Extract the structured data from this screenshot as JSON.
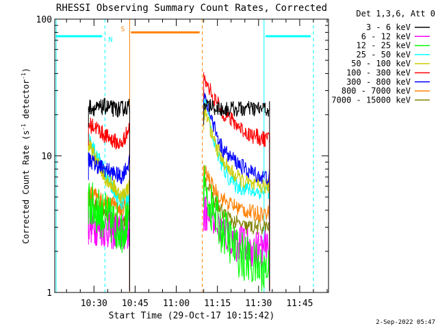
{
  "chart_data": {
    "type": "line",
    "title": "RHESSI Observing Summary Count Rates, Corrected",
    "xlabel": "Start Time (29-Oct-17 10:15:42)",
    "ylabel": "Corrected Count Rate (s⁻¹ detector⁻¹)",
    "ylabel_parts": {
      "main": "Corrected Count Rate (s",
      "exp1": "-1",
      "mid": " detector",
      "exp2": "-1",
      "end": ")"
    },
    "xlim": [
      "10:15:42",
      "11:55:30"
    ],
    "ylim": [
      1,
      100
    ],
    "yscale": "log",
    "x_ticks": [
      "10:30",
      "10:45",
      "11:00",
      "11:15",
      "11:30",
      "11:45"
    ],
    "y_ticks": [
      "1",
      "10",
      "100"
    ],
    "legend": {
      "placement": "top-right",
      "header": "Det 1,3,6, Att 0",
      "entries": [
        {
          "label": "3 - 6 keV",
          "color": "#000000"
        },
        {
          "label": "6 - 12 keV",
          "color": "#ff00ff"
        },
        {
          "label": "12 - 25 keV",
          "color": "#00ff00"
        },
        {
          "label": "25 - 50 keV",
          "color": "#00ffff"
        },
        {
          "label": "50 - 100 keV",
          "color": "#cccc00"
        },
        {
          "label": "100 - 300 keV",
          "color": "#ff0000"
        },
        {
          "label": "300 - 800 keV",
          "color": "#0000ff"
        },
        {
          "label": "800 - 7000 keV",
          "color": "#ff8000"
        },
        {
          "label": "7000 - 15000 keV",
          "color": "#808000"
        }
      ]
    },
    "intervals": [
      {
        "label": "N",
        "kind": "night",
        "color": "#00ffff",
        "ranges": [
          [
            "10:15:42",
            "10:34:00"
          ],
          [
            "11:32:00",
            "11:50:00"
          ]
        ],
        "level": 75
      },
      {
        "label": "S",
        "kind": "saa",
        "color": "#ff8000",
        "ranges": [
          [
            "10:43:00",
            "11:09:30"
          ]
        ],
        "level": 80
      }
    ],
    "segments": [
      {
        "x": [
          "10:28:00",
          "10:31:00",
          "10:34:00",
          "10:37:00",
          "10:40:00",
          "10:43:00"
        ],
        "series": [
          {
            "name": "3 - 6 keV",
            "values": [
              23,
              22,
              23,
              22,
              22,
              23
            ]
          },
          {
            "name": "6 - 12 keV",
            "values": [
              3.2,
              3.0,
              2.9,
              2.8,
              2.7,
              2.8
            ]
          },
          {
            "name": "12 - 25 keV",
            "values": [
              4.5,
              4.0,
              3.6,
              3.2,
              2.9,
              3.5
            ]
          },
          {
            "name": "25 - 50 keV",
            "values": [
              13,
              10,
              7.5,
              5.5,
              4.5,
              5
            ]
          },
          {
            "name": "50 - 100 keV",
            "values": [
              12,
              9,
              7,
              6,
              5,
              6
            ]
          },
          {
            "name": "100 - 300 keV",
            "values": [
              17,
              16,
              14,
              13,
              12,
              16
            ]
          },
          {
            "name": "300 - 800 keV",
            "values": [
              9.5,
              8.5,
              8,
              7.5,
              7,
              9
            ]
          },
          {
            "name": "800 - 7000 keV",
            "values": [
              5.5,
              5,
              4.5,
              4.5,
              4,
              5
            ]
          },
          {
            "name": "7000 - 15000 keV",
            "values": [
              5,
              4.2,
              3.8,
              3.5,
              3.2,
              3.8
            ]
          }
        ]
      },
      {
        "x": [
          "11:10:00",
          "11:13:00",
          "11:16:00",
          "11:19:00",
          "11:22:00",
          "11:25:00",
          "11:28:00",
          "11:31:00",
          "11:34:00"
        ],
        "series": [
          {
            "name": "3 - 6 keV",
            "values": [
              24,
              23,
              22,
              22,
              22,
              22,
              22,
              22,
              22
            ]
          },
          {
            "name": "6 - 12 keV",
            "values": [
              4,
              3.5,
              3,
              2.5,
              2.3,
              2.2,
              2.1,
              2.1,
              2
            ]
          },
          {
            "name": "12 - 25 keV",
            "values": [
              6,
              4,
              3,
              2.5,
              2,
              1.8,
              1.6,
              1.5,
              1.5
            ]
          },
          {
            "name": "25 - 50 keV",
            "values": [
              28,
              14,
              9,
              7,
              6,
              5.8,
              5.5,
              5.5,
              5.5
            ]
          },
          {
            "name": "50 - 100 keV",
            "values": [
              22,
              14,
              10,
              8,
              7,
              6.5,
              6,
              6,
              6
            ]
          },
          {
            "name": "100 - 300 keV",
            "values": [
              37,
              28,
              22,
              19,
              17,
              15,
              14,
              13.5,
              13
            ]
          },
          {
            "name": "300 - 800 keV",
            "values": [
              30,
              18,
              12,
              10,
              9,
              8,
              7.5,
              7,
              7
            ]
          },
          {
            "name": "800 - 7000 keV",
            "values": [
              8,
              6,
              5,
              4.5,
              4.2,
              4,
              3.8,
              3.8,
              3.8
            ]
          },
          {
            "name": "7000 - 15000 keV",
            "values": [
              7,
              5,
              4,
              3.5,
              3.2,
              3,
              3,
              3,
              3
            ]
          }
        ]
      }
    ],
    "footer_date": "2-Sep-2022 05:47"
  }
}
